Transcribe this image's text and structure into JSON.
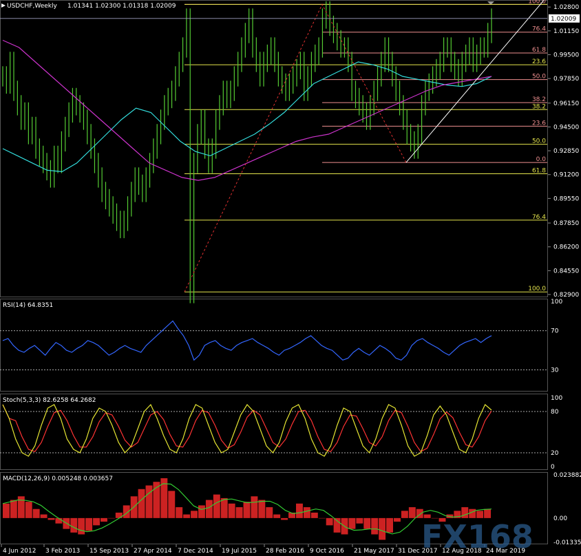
{
  "header": {
    "symbol_title": "USDCHF,Weekly",
    "ohlc": "1.01341 1.02300 1.01318 1.02009"
  },
  "colors": {
    "background": "#000000",
    "price_bars": "#55cc33",
    "ma_fast": "#33dddd",
    "ma_slow": "#cc33cc",
    "fib_yellow": "#e6e64d",
    "fib_pink": "#f09090",
    "rsi_line": "#3366ff",
    "stoch_main": "#e6e633",
    "stoch_signal": "#ff3333",
    "macd_hist": "#cc2222",
    "macd_signal": "#33cc33",
    "grid": "#888888",
    "watermark": "#2a5a8a"
  },
  "watermark": "FX168",
  "chart_data": [
    {
      "type": "line",
      "panel": "price",
      "title": "USDCHF,Weekly",
      "y_ticks": [
        "1.02800",
        "1.01150",
        "0.99500",
        "0.97850",
        "0.96150",
        "0.94500",
        "0.92850",
        "0.91200",
        "0.89550",
        "0.87850",
        "0.86200",
        "0.84550",
        "0.82900"
      ],
      "ylim": [
        0.829,
        1.03
      ],
      "current_price": "1.02009",
      "current_value": 1.02009,
      "series": [
        {
          "values": [
            0.98,
            0.975,
            0.99,
            0.97,
            0.96,
            0.95,
            0.955,
            0.94,
            0.945,
            0.93,
            0.925,
            0.92,
            0.915,
            0.91,
            0.925,
            0.92,
            0.935,
            0.945,
            0.955,
            0.965,
            0.96,
            0.955,
            0.95,
            0.94,
            0.93,
            0.92,
            0.91,
            0.9,
            0.895,
            0.89,
            0.885,
            0.88,
            0.875,
            0.88,
            0.89,
            0.9,
            0.91,
            0.905,
            0.9,
            0.91,
            0.92,
            0.93,
            0.94,
            0.95,
            0.96,
            0.965,
            0.97,
            0.98,
            0.99,
            1.0,
            1.02,
            0.83,
            0.92,
            0.94,
            0.95,
            0.93,
            0.92,
            0.93,
            0.95,
            0.96,
            0.97,
            0.965,
            0.97,
            0.98,
            0.99,
            1.0,
            1.01,
            1.02,
            1.0,
            0.99,
            0.98,
            0.99,
            0.995,
            1.0,
            0.99,
            0.98,
            0.975,
            0.97,
            0.975,
            0.98,
            0.985,
            0.99,
            0.97,
            0.98,
            0.99,
            0.995,
            1.0,
            1.02,
            1.025,
            1.015,
            1.01,
            1.005,
            1.0,
            1.0,
            0.99,
            0.97,
            0.965,
            0.96,
            0.955,
            0.95,
            0.96,
            0.97,
            0.98,
            0.99,
            1.0,
            0.99,
            0.98,
            0.97,
            0.96,
            0.95,
            0.94,
            0.935,
            0.93,
            0.94,
            0.96,
            0.97,
            0.975,
            0.98,
            0.985,
            0.99,
            1.0,
            1.0,
            0.99,
            0.985,
            0.98,
            0.99,
            0.995,
            1.0,
            0.99,
            0.995,
            1.0,
            1.0,
            1.01,
            1.02
          ]
        },
        {
          "name": "ma_fast",
          "values": [
            0.93,
            0.925,
            0.92,
            0.915,
            0.914,
            0.92,
            0.93,
            0.94,
            0.95,
            0.958,
            0.955,
            0.945,
            0.935,
            0.928,
            0.925,
            0.93,
            0.935,
            0.94,
            0.947,
            0.955,
            0.965,
            0.975,
            0.98,
            0.985,
            0.99,
            0.988,
            0.985,
            0.98,
            0.978,
            0.976,
            0.974,
            0.973,
            0.975,
            0.98
          ]
        },
        {
          "name": "ma_slow",
          "values": [
            1.005,
            1.0,
            0.99,
            0.98,
            0.97,
            0.96,
            0.95,
            0.94,
            0.93,
            0.92,
            0.915,
            0.91,
            0.908,
            0.91,
            0.915,
            0.92,
            0.925,
            0.93,
            0.935,
            0.938,
            0.94,
            0.945,
            0.95,
            0.955,
            0.96,
            0.965,
            0.97,
            0.974,
            0.976,
            0.978,
            0.98
          ]
        }
      ],
      "fib_levels_upper": {
        "color": "fib_pink",
        "labels": [
          "100.0",
          "76.4",
          "61.8",
          "50.0",
          "38.2",
          "23.6",
          "0.0"
        ],
        "values": [
          1.0298,
          1.0106,
          0.9962,
          0.9778,
          0.9618,
          0.9455,
          0.9204
        ]
      },
      "fib_levels_yellow_short": {
        "labels": [
          "23.6",
          "38.2",
          "50.0"
        ],
        "values": [
          0.988,
          0.957,
          0.933
        ]
      },
      "fib_levels_lower": {
        "color": "fib_yellow",
        "labels": [
          "61.8",
          "76.4",
          "100.0"
        ],
        "values": [
          0.9126,
          0.8805,
          0.8308
        ]
      },
      "x_ticks": [
        "4 Jun 2012",
        "3 Feb 2013",
        "15 Sep 2013",
        "27 Apr 2014",
        "7 Dec 2014",
        "19 Jul 2015",
        "28 Feb 2016",
        "9 Oct 2016",
        "21 May 2017",
        "31 Dec 2017",
        "12 Aug 2018",
        "24 Mar 2019"
      ]
    },
    {
      "type": "line",
      "panel": "rsi",
      "title": "RSI(14) 64.8351",
      "ylim": [
        10,
        100
      ],
      "y_ticks": [
        "100",
        "70",
        "30",
        "0"
      ],
      "levels": [
        70,
        30
      ],
      "series": [
        {
          "name": "RSI(14)",
          "values": [
            60,
            62,
            55,
            50,
            48,
            52,
            55,
            50,
            45,
            52,
            58,
            55,
            50,
            48,
            52,
            55,
            60,
            58,
            55,
            50,
            45,
            48,
            52,
            55,
            52,
            50,
            48,
            55,
            60,
            65,
            70,
            75,
            80,
            72,
            65,
            55,
            40,
            45,
            55,
            58,
            60,
            55,
            52,
            50,
            55,
            58,
            60,
            62,
            58,
            55,
            52,
            48,
            45,
            50,
            52,
            55,
            58,
            62,
            65,
            60,
            55,
            52,
            50,
            45,
            40,
            42,
            48,
            52,
            48,
            45,
            50,
            55,
            52,
            48,
            42,
            40,
            45,
            55,
            60,
            62,
            58,
            55,
            52,
            48,
            45,
            50,
            55,
            58,
            60,
            62,
            58,
            62,
            65
          ]
        }
      ]
    },
    {
      "type": "line",
      "panel": "stoch",
      "title": "Stoch(5,3,3) 82.6258 64.2682",
      "ylim": [
        0,
        100
      ],
      "y_ticks": [
        "100",
        "80",
        "20",
        "0"
      ],
      "levels": [
        80,
        20
      ],
      "series": [
        {
          "name": "main",
          "values": [
            90,
            70,
            40,
            20,
            15,
            30,
            60,
            85,
            90,
            70,
            40,
            25,
            20,
            40,
            70,
            85,
            80,
            60,
            35,
            20,
            30,
            55,
            80,
            90,
            70,
            45,
            25,
            20,
            40,
            70,
            90,
            85,
            60,
            35,
            20,
            25,
            50,
            75,
            90,
            80,
            55,
            30,
            20,
            35,
            65,
            85,
            90,
            70,
            40,
            20,
            15,
            30,
            60,
            85,
            80,
            55,
            30,
            20,
            40,
            70,
            90,
            85,
            60,
            30,
            15,
            20,
            45,
            75,
            88,
            75,
            50,
            25,
            20,
            40,
            70,
            90,
            82
          ]
        }
      ]
    },
    {
      "type": "bar",
      "panel": "macd",
      "title": "MACD(12,26,9) 0.005248 0.003657",
      "ylim": [
        -0.01335,
        0.023882
      ],
      "y_ticks": [
        "0.023882",
        "0.00",
        "-0.013355"
      ],
      "series": [
        {
          "name": "MACD(12,26,9)",
          "values": [
            0.008,
            0.01,
            0.012,
            0.009,
            0.005,
            0.002,
            -0.001,
            -0.003,
            -0.006,
            -0.008,
            -0.009,
            -0.007,
            -0.004,
            -0.002,
            0.0,
            0.003,
            0.007,
            0.012,
            0.016,
            0.018,
            0.02,
            0.022,
            0.015,
            0.006,
            0.002,
            0.004,
            0.007,
            0.01,
            0.013,
            0.011,
            0.008,
            0.006,
            0.009,
            0.012,
            0.01,
            0.006,
            0.002,
            -0.001,
            0.003,
            0.008,
            0.006,
            0.003,
            0.0,
            -0.004,
            -0.008,
            -0.009,
            -0.006,
            -0.003,
            -0.006,
            -0.009,
            -0.012,
            -0.008,
            -0.002,
            0.004,
            0.006,
            0.005,
            0.002,
            0.0,
            -0.002,
            0.002,
            0.004,
            0.006,
            0.005,
            0.004,
            0.005
          ]
        }
      ]
    }
  ]
}
